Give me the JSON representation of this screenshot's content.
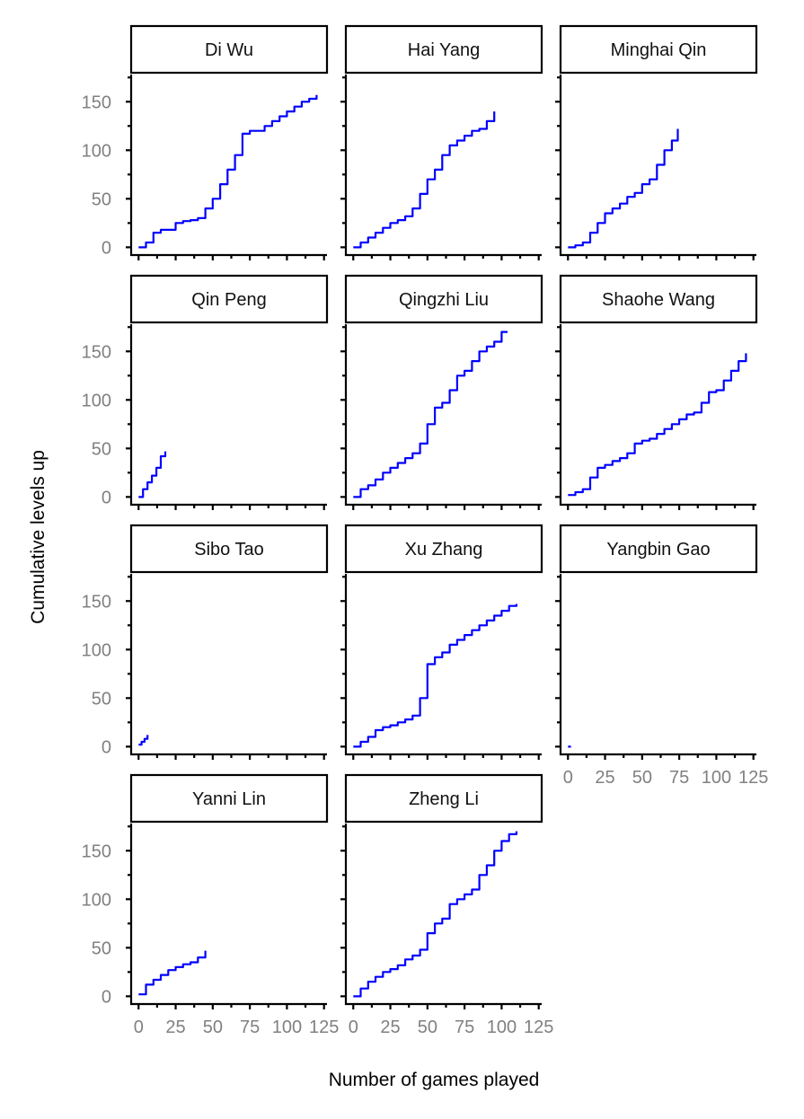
{
  "chart_data": {
    "type": "line",
    "xlabel": "Number of games played",
    "ylabel": "Cumulative levels up",
    "xlim": [
      -5,
      127
    ],
    "ylim": [
      -8,
      178
    ],
    "x_ticks": [
      0,
      25,
      50,
      75,
      100,
      125
    ],
    "y_ticks": [
      0,
      50,
      100,
      150
    ],
    "line_color": "#0000ff",
    "grid": false,
    "facets": [
      {
        "name": "Di Wu",
        "x": [
          0,
          5,
          10,
          15,
          20,
          25,
          30,
          35,
          40,
          45,
          50,
          55,
          60,
          65,
          70,
          75,
          80,
          85,
          90,
          95,
          100,
          105,
          110,
          115,
          120
        ],
        "y": [
          0,
          5,
          15,
          18,
          18,
          25,
          27,
          28,
          30,
          40,
          50,
          65,
          80,
          95,
          117,
          120,
          120,
          125,
          130,
          135,
          140,
          145,
          150,
          153,
          157
        ]
      },
      {
        "name": "Hai Yang",
        "x": [
          0,
          5,
          10,
          15,
          20,
          25,
          30,
          35,
          40,
          45,
          50,
          55,
          60,
          65,
          70,
          75,
          80,
          85,
          90,
          95
        ],
        "y": [
          0,
          5,
          10,
          15,
          20,
          25,
          28,
          32,
          40,
          55,
          70,
          80,
          95,
          105,
          110,
          115,
          120,
          122,
          130,
          140
        ]
      },
      {
        "name": "Minghai Qin",
        "x": [
          0,
          5,
          10,
          15,
          20,
          25,
          30,
          35,
          40,
          45,
          50,
          55,
          60,
          65,
          70,
          74
        ],
        "y": [
          0,
          2,
          5,
          15,
          25,
          35,
          40,
          45,
          52,
          56,
          65,
          70,
          85,
          100,
          110,
          122
        ]
      },
      {
        "name": "Qin Peng",
        "x": [
          0,
          3,
          6,
          9,
          12,
          15,
          18
        ],
        "y": [
          0,
          8,
          15,
          22,
          30,
          42,
          47
        ]
      },
      {
        "name": "Qingzhi Liu",
        "x": [
          0,
          5,
          10,
          15,
          20,
          25,
          30,
          35,
          40,
          45,
          50,
          55,
          60,
          65,
          70,
          75,
          80,
          85,
          90,
          95,
          100,
          104
        ],
        "y": [
          0,
          8,
          12,
          18,
          25,
          30,
          35,
          40,
          45,
          55,
          75,
          92,
          97,
          110,
          125,
          130,
          140,
          150,
          155,
          160,
          170,
          170
        ]
      },
      {
        "name": "Shaohe Wang",
        "x": [
          0,
          5,
          10,
          15,
          20,
          25,
          30,
          35,
          40,
          45,
          50,
          55,
          60,
          65,
          70,
          75,
          80,
          85,
          90,
          95,
          100,
          105,
          110,
          115,
          120
        ],
        "y": [
          2,
          5,
          8,
          20,
          30,
          33,
          37,
          40,
          45,
          55,
          58,
          60,
          65,
          70,
          75,
          80,
          85,
          87,
          97,
          108,
          110,
          120,
          130,
          140,
          148
        ]
      },
      {
        "name": "Sibo Tao",
        "x": [
          0,
          2,
          4,
          6
        ],
        "y": [
          2,
          5,
          8,
          12
        ]
      },
      {
        "name": "Xu Zhang",
        "x": [
          0,
          5,
          10,
          15,
          20,
          25,
          30,
          35,
          40,
          45,
          50,
          55,
          60,
          65,
          70,
          75,
          80,
          85,
          90,
          95,
          100,
          105,
          110
        ],
        "y": [
          0,
          5,
          10,
          17,
          20,
          22,
          25,
          28,
          32,
          50,
          85,
          92,
          97,
          105,
          110,
          115,
          120,
          125,
          130,
          135,
          140,
          145,
          147
        ]
      },
      {
        "name": "Yangbin Gao",
        "x": [
          0,
          1,
          2
        ],
        "y": [
          0,
          0,
          0
        ]
      },
      {
        "name": "Yanni Lin",
        "x": [
          0,
          5,
          10,
          15,
          20,
          25,
          30,
          35,
          40,
          45
        ],
        "y": [
          2,
          12,
          17,
          22,
          27,
          30,
          33,
          35,
          40,
          47
        ]
      },
      {
        "name": "Zheng Li",
        "x": [
          0,
          5,
          10,
          15,
          20,
          25,
          30,
          35,
          40,
          45,
          50,
          55,
          60,
          65,
          70,
          75,
          80,
          85,
          90,
          95,
          100,
          105,
          110
        ],
        "y": [
          0,
          8,
          15,
          20,
          25,
          28,
          32,
          38,
          42,
          48,
          65,
          75,
          80,
          95,
          100,
          105,
          110,
          125,
          135,
          150,
          160,
          167,
          170
        ]
      }
    ]
  }
}
